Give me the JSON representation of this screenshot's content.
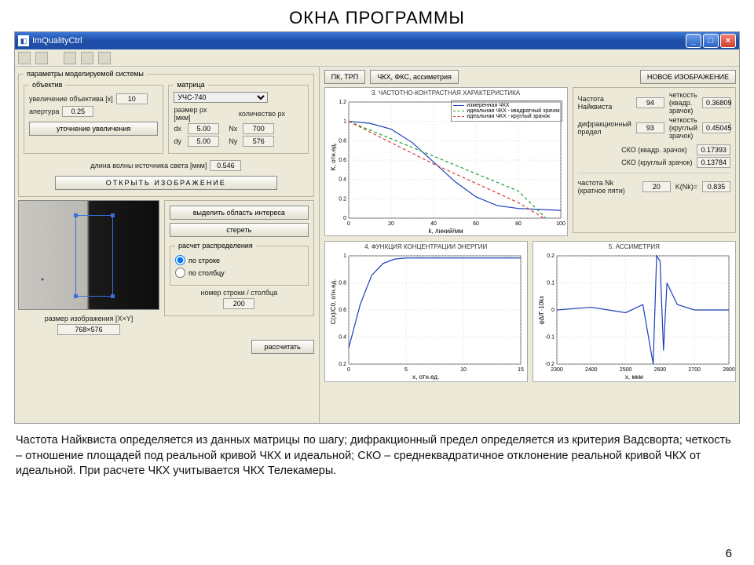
{
  "slide": {
    "title": "ОКНА ПРОГРАММЫ",
    "page": "6"
  },
  "window": {
    "title": "ImQualityCtrl",
    "min": "_",
    "max": "□",
    "close": "×"
  },
  "left": {
    "paramsGroup": "параметры моделируемой системы",
    "objGroup": "объектив",
    "objMagLabel": "увеличение объектива [х]",
    "objMagVal": "10",
    "apertureLabel": "апертура",
    "apertureVal": "0.25",
    "refineBtn": "уточнение увеличения",
    "matrixGroup": "матрица",
    "matrixSelect": "УЧС-740",
    "pxSizeLabel": "размер px [мкм]",
    "countLabel": "количество px",
    "dx": "5.00",
    "dy": "5.00",
    "Nx": "700",
    "Ny": "576",
    "waveLabel": "длина волны источника света [мкм]",
    "waveVal": "0.546",
    "openImgBtn": "ОТКРЫТЬ ИЗОБРАЖЕНИЕ",
    "roiBtn": "выделить область интереса",
    "binBtn": "стереть",
    "distGroup": "расчет распределения",
    "radioRow": "по строке",
    "radioCol": "по столбцу",
    "rowColLabel": "номер строки / столбца",
    "rowColVal": "200",
    "sizeLabel": "размер изображения [X×Y]",
    "sizeVal": "768×576",
    "calcBtn": "рассчитать"
  },
  "right": {
    "btn1": "ПК, ТРП",
    "btn2": "ЧКХ, ФКС, ассиметрия",
    "btnNew": "НОВОЕ ИЗОБРАЖЕНИЕ",
    "chart3": {
      "title": "3. ЧАСТОТНО-КОНТРАСТНАЯ ХАРАКТЕРИСТИКА",
      "xlabel": "k, линий/мм",
      "ylabel": "K, отн.ед.",
      "xlim": [
        0,
        100
      ],
      "ylim": [
        0,
        1.2
      ],
      "xticks": [
        "0",
        "20",
        "40",
        "60",
        "80",
        "100"
      ],
      "yticks": [
        "0",
        "0.2",
        "0.4",
        "0.6",
        "0.8",
        "1",
        "1.2"
      ],
      "series": [
        {
          "label": "измеренная ЧКХ",
          "color": "#1e3fb8",
          "dash": "0",
          "pts": [
            [
              0,
              1.0
            ],
            [
              10,
              0.98
            ],
            [
              20,
              0.92
            ],
            [
              30,
              0.78
            ],
            [
              40,
              0.58
            ],
            [
              50,
              0.38
            ],
            [
              60,
              0.22
            ],
            [
              70,
              0.13
            ],
            [
              80,
              0.1
            ],
            [
              90,
              0.09
            ],
            [
              100,
              0.08
            ]
          ]
        },
        {
          "label": "идеальная ЧКХ - квадратный зрачок",
          "color": "#1aa03a",
          "dash": "4 3",
          "pts": [
            [
              0,
              1.0
            ],
            [
              20,
              0.82
            ],
            [
              40,
              0.64
            ],
            [
              60,
              0.46
            ],
            [
              80,
              0.28
            ],
            [
              93,
              0.0
            ]
          ]
        },
        {
          "label": "идеальная ЧКХ - круглый зрачок",
          "color": "#d83a3a",
          "dash": "4 3",
          "pts": [
            [
              0,
              1.0
            ],
            [
              20,
              0.78
            ],
            [
              40,
              0.56
            ],
            [
              60,
              0.36
            ],
            [
              80,
              0.16
            ],
            [
              92,
              0.0
            ]
          ]
        }
      ]
    },
    "stats": {
      "nyqLabel": "Частота Найквиста",
      "nyqVal": "94",
      "sharpSqLabel": "четкость (квадр. зрачок)",
      "sharpSqVal": "0.36809",
      "difLabel": "дифракционный предел",
      "difVal": "93",
      "sharpCrLabel": "четкость (круглый зрачок)",
      "sharpCrVal": "0.45045",
      "skoSqLabel": "СКО (квадр. зрачок)",
      "skoSqVal": "0.17393",
      "skoCrLabel": "СКО (круглый зрачок)",
      "skoCrVal": "0.13784",
      "nkLabel": "частота Nk (кратное пяти)",
      "nkVal": "20",
      "knkLabel": "K(Nk)=",
      "knkVal": "0.835"
    },
    "chart4": {
      "title": "4. ФУНКЦИЯ КОНЦЕНТРАЦИИ ЭНЕРГИИ",
      "xlabel": "x, отн.ед.",
      "ylabel": "C(x)/C0, отн.ед.",
      "xlim": [
        0,
        15
      ],
      "ylim": [
        0,
        1.0
      ],
      "xticks": [
        "0",
        "5",
        "10",
        "15"
      ],
      "yticks": [
        "0.2",
        "0.4",
        "0.6",
        "0.8",
        "1"
      ],
      "color": "#1e3fb8",
      "pts": [
        [
          0,
          0.15
        ],
        [
          1,
          0.55
        ],
        [
          2,
          0.82
        ],
        [
          3,
          0.93
        ],
        [
          4,
          0.97
        ],
        [
          5,
          0.98
        ],
        [
          7,
          0.98
        ],
        [
          10,
          0.98
        ],
        [
          15,
          0.98
        ]
      ]
    },
    "chart5": {
      "title": "5. АССИМЕТРИЯ",
      "xlabel": "x, мкм",
      "ylabel": "φΔ/Γ·10kx",
      "xlim": [
        2300,
        2800
      ],
      "ylim": [
        -0.2,
        0.2
      ],
      "xticks": [
        "2300",
        "2400",
        "2500",
        "2600",
        "2700",
        "2800"
      ],
      "yticks": [
        "-0.2",
        "-0.1",
        "0",
        "0.1",
        "0.2"
      ],
      "color": "#1e3fb8",
      "pts": [
        [
          2300,
          0.0
        ],
        [
          2400,
          0.01
        ],
        [
          2500,
          -0.01
        ],
        [
          2550,
          0.02
        ],
        [
          2580,
          -0.2
        ],
        [
          2590,
          0.2
        ],
        [
          2600,
          0.18
        ],
        [
          2610,
          -0.15
        ],
        [
          2620,
          0.1
        ],
        [
          2650,
          0.02
        ],
        [
          2700,
          0.0
        ],
        [
          2800,
          0.0
        ]
      ]
    }
  },
  "footer": "Частота Найквиста определяется из данных матрицы по шагу; дифракционный предел определяется из критерия Вадсворта; четкость – отношение площадей под реальной кривой ЧКХ и идеальной; СКО – среднеквадратичное отклонение реальной кривой ЧКХ от идеальной. При расчете ЧКХ учитывается ЧКХ Телекамеры."
}
